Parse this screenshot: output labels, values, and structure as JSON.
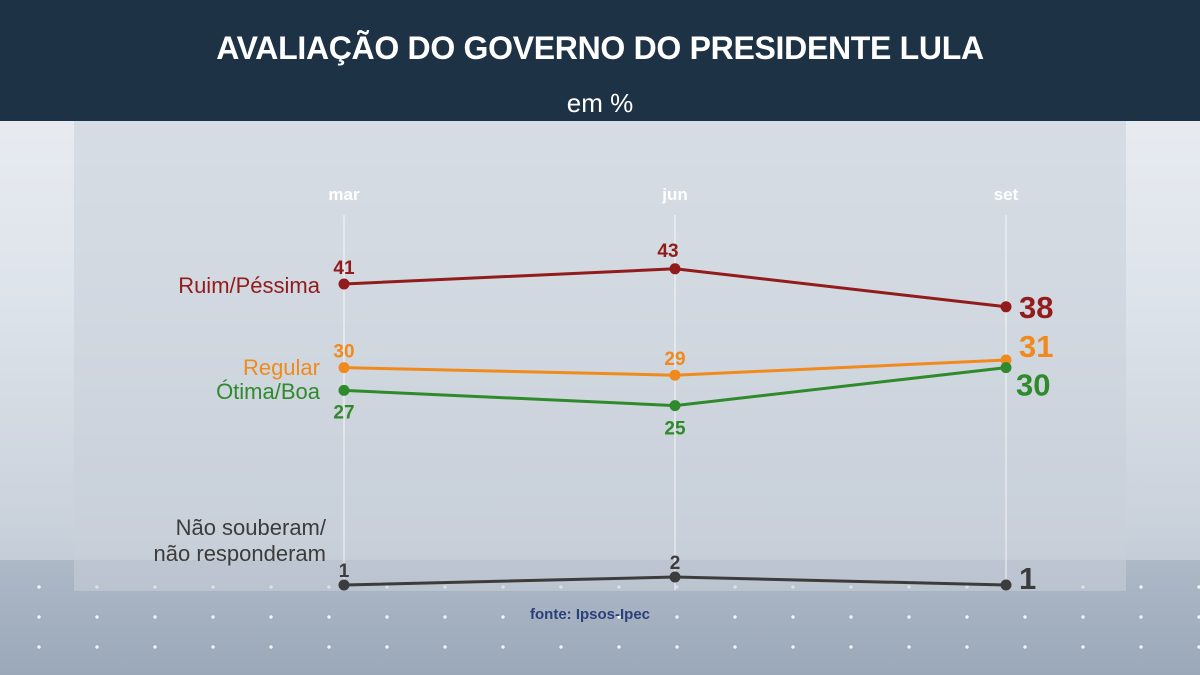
{
  "header": {
    "title": "AVALIAÇÃO DO GOVERNO DO PRESIDENTE LULA",
    "subtitle": "em %"
  },
  "source": "fonte: Ipsos-Ipec",
  "colors": {
    "ruim": "#921b1b",
    "regular": "#f08a1c",
    "otima": "#2f8a2c",
    "nsnr": "#3c3c3c"
  },
  "chart_data": {
    "type": "line",
    "title": "AVALIAÇÃO DO GOVERNO DO PRESIDENTE LULA",
    "subtitle": "em %",
    "categories": [
      "mar",
      "jun",
      "set"
    ],
    "series": [
      {
        "key": "ruim",
        "name": "Ruim/Péssima",
        "values": [
          41,
          43,
          38
        ]
      },
      {
        "key": "regular",
        "name": "Regular",
        "values": [
          30,
          29,
          31
        ]
      },
      {
        "key": "otima",
        "name": "Ótima/Boa",
        "values": [
          27,
          25,
          30
        ]
      },
      {
        "key": "nsnr",
        "name": "Não souberam/\nnão responderam",
        "values": [
          1,
          2,
          1
        ]
      }
    ],
    "xlabel": "",
    "ylabel": "",
    "ylim": [
      0,
      45
    ],
    "grid": false,
    "legend": "inline-left"
  }
}
